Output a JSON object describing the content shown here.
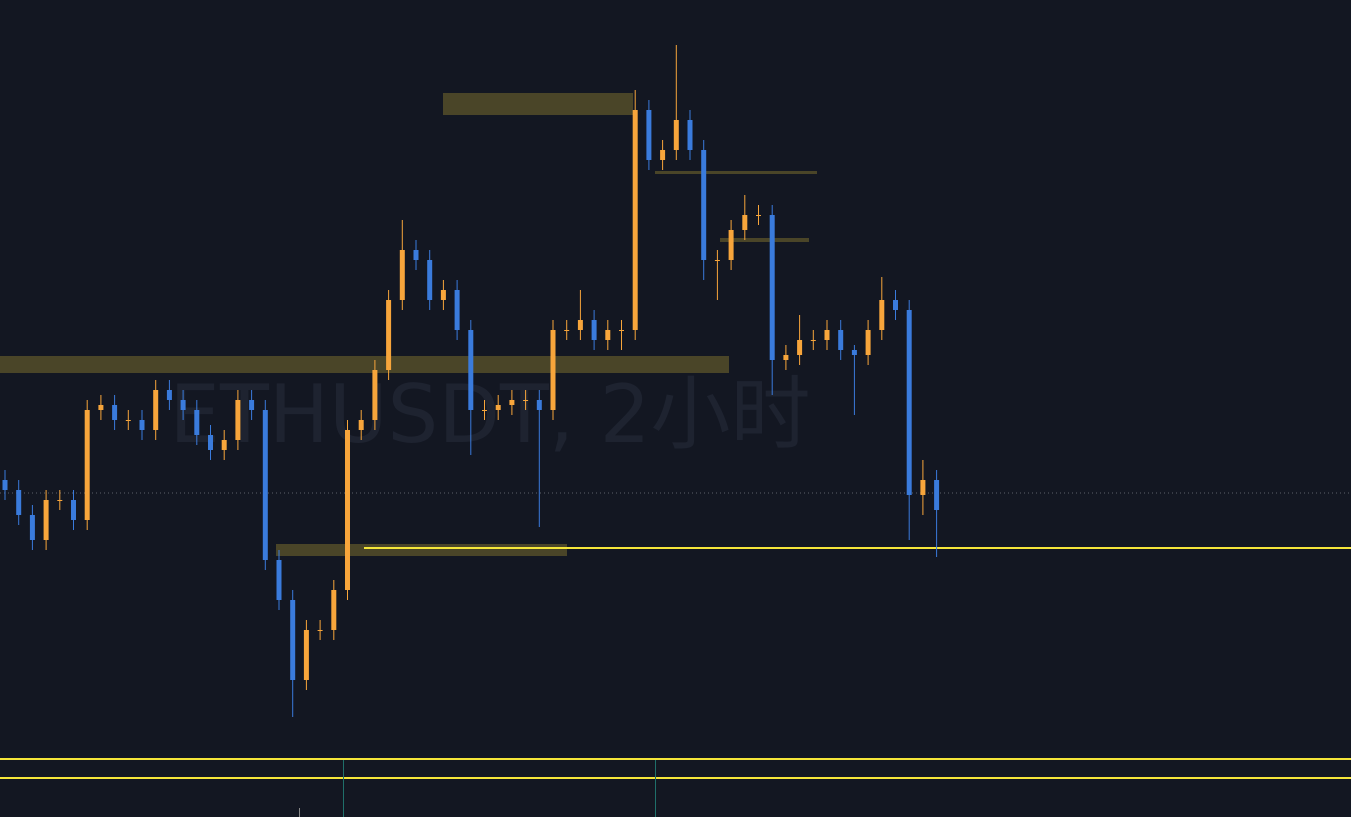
{
  "chart_data": {
    "type": "candlestick",
    "watermark": "ETHUSDT, 2小时",
    "up_color": "#f7a53b",
    "down_color": "#3a7bdc",
    "ylim": [
      0,
      817
    ],
    "open": [
      337,
      327,
      302,
      277,
      317,
      317,
      297,
      407,
      412,
      397,
      397,
      387,
      427,
      417,
      407,
      382,
      367,
      377,
      417,
      407,
      257,
      217,
      137,
      187,
      187,
      227,
      387,
      397,
      447,
      517,
      567,
      557,
      517,
      527,
      487,
      407,
      407,
      412,
      417,
      417,
      407,
      487,
      487,
      497,
      477,
      487,
      487,
      707,
      657,
      667,
      697,
      667,
      557,
      557,
      587,
      602,
      602,
      457,
      462,
      477,
      477,
      487,
      467,
      462,
      487,
      517,
      507,
      322,
      337
    ],
    "high": [
      347,
      337,
      312,
      327,
      327,
      327,
      417,
      422,
      422,
      407,
      407,
      437,
      437,
      427,
      417,
      392,
      387,
      427,
      427,
      417,
      267,
      227,
      197,
      197,
      237,
      397,
      407,
      457,
      527,
      597,
      577,
      567,
      537,
      537,
      497,
      417,
      422,
      427,
      427,
      427,
      497,
      497,
      527,
      507,
      497,
      497,
      727,
      717,
      677,
      772,
      707,
      677,
      567,
      597,
      622,
      612,
      612,
      472,
      502,
      487,
      497,
      497,
      472,
      497,
      540,
      527,
      517,
      357,
      347
    ],
    "low": [
      317,
      292,
      267,
      267,
      307,
      287,
      287,
      397,
      387,
      387,
      377,
      377,
      407,
      397,
      372,
      357,
      357,
      367,
      397,
      247,
      207,
      100,
      127,
      177,
      177,
      217,
      377,
      387,
      437,
      507,
      547,
      507,
      507,
      477,
      362,
      397,
      397,
      402,
      407,
      290,
      397,
      477,
      477,
      467,
      467,
      467,
      477,
      647,
      647,
      657,
      657,
      537,
      517,
      547,
      577,
      592,
      422,
      447,
      452,
      467,
      467,
      457,
      402,
      452,
      477,
      497,
      277,
      302,
      260
    ],
    "close": [
      327,
      302,
      277,
      317,
      317,
      297,
      407,
      412,
      397,
      397,
      387,
      427,
      417,
      407,
      382,
      367,
      377,
      417,
      407,
      257,
      217,
      137,
      187,
      187,
      227,
      387,
      397,
      447,
      517,
      567,
      557,
      517,
      527,
      487,
      407,
      407,
      412,
      417,
      417,
      407,
      487,
      487,
      497,
      477,
      487,
      487,
      707,
      657,
      667,
      697,
      667,
      557,
      557,
      587,
      602,
      602,
      457,
      462,
      477,
      477,
      487,
      467,
      462,
      487,
      517,
      507,
      322,
      337,
      307
    ]
  }
}
